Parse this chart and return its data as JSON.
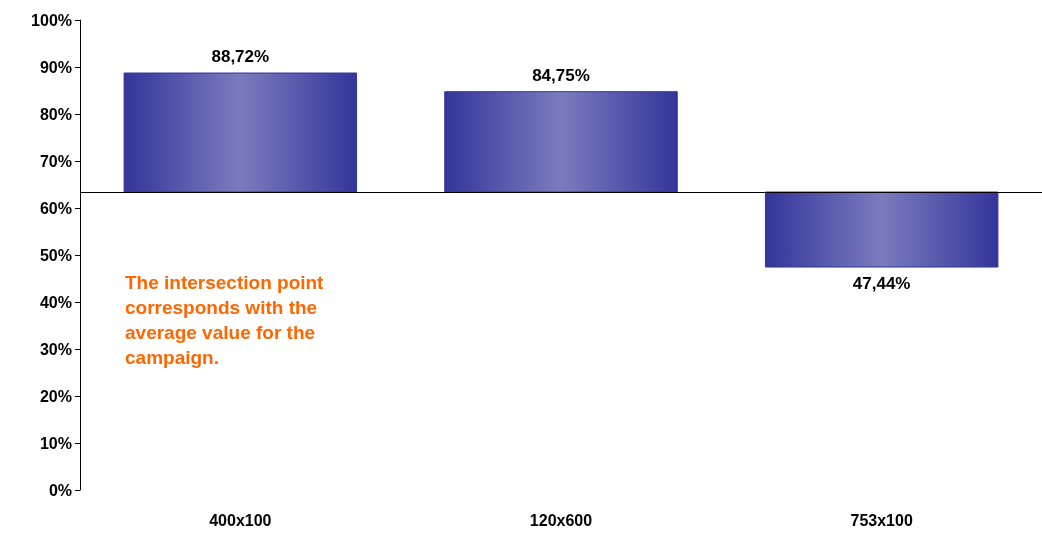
{
  "chart_data": {
    "type": "bar",
    "categories": [
      "400x100",
      "120x600",
      "753x100"
    ],
    "values": [
      25.32,
      21.35,
      -15.96
    ],
    "base": [
      63.4,
      63.4,
      63.4
    ],
    "value_labels": [
      "88,72%",
      "84,75%",
      "47,44%"
    ],
    "color": "#34359a",
    "ylim": [
      0,
      100
    ],
    "yticks": [
      {
        "value": 0,
        "label": "0%"
      },
      {
        "value": 10,
        "label": "10%"
      },
      {
        "value": 20,
        "label": "20%"
      },
      {
        "value": 30,
        "label": "30%"
      },
      {
        "value": 40,
        "label": "40%"
      },
      {
        "value": 50,
        "label": "50%"
      },
      {
        "value": 60,
        "label": "60%"
      },
      {
        "value": 70,
        "label": "70%"
      },
      {
        "value": 80,
        "label": "80%"
      },
      {
        "value": 90,
        "label": "90%"
      },
      {
        "value": 100,
        "label": "100%"
      }
    ],
    "grid": false,
    "ref_lines": [
      {
        "axis": "y",
        "value": 63.4,
        "color": "#000000"
      }
    ],
    "annotations": [
      "The intersection point corresponds with the average value for the campaign."
    ]
  }
}
